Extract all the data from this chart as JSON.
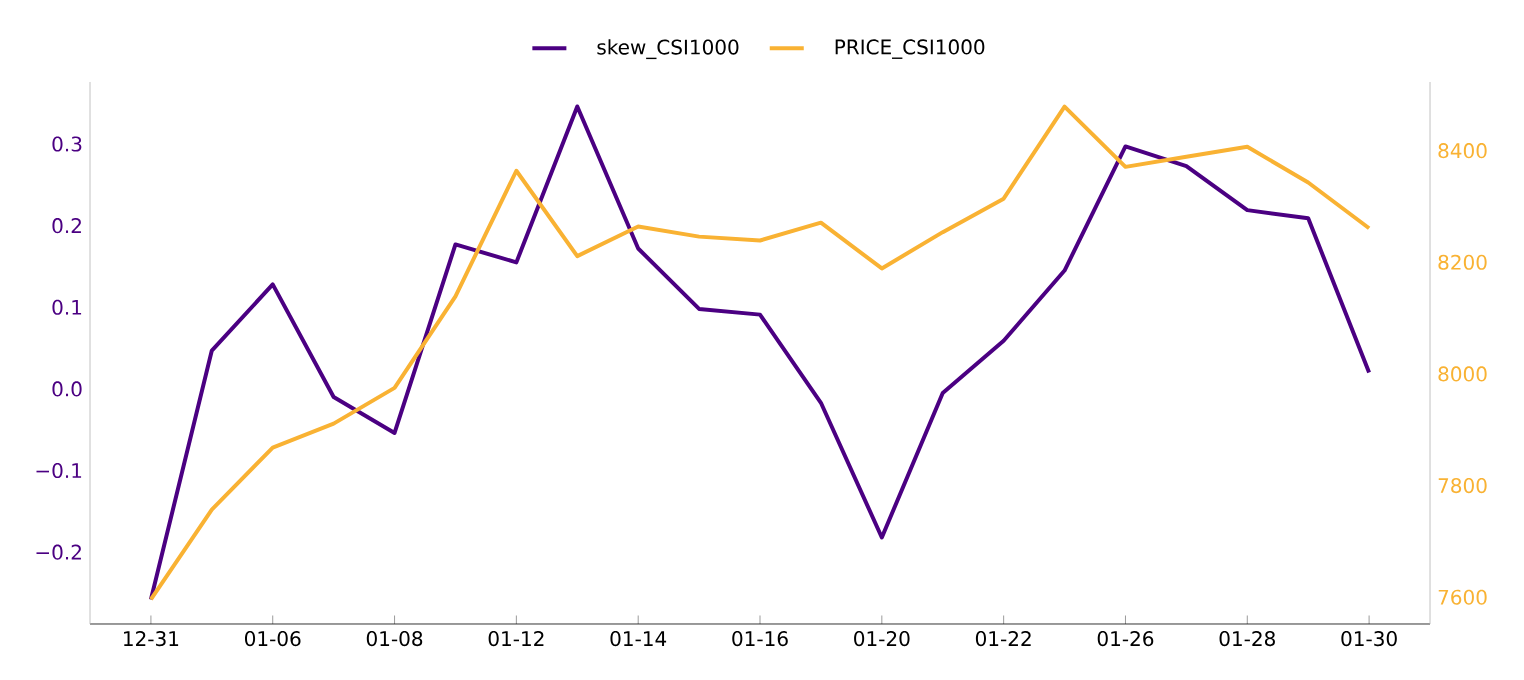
{
  "chart_data": {
    "type": "line",
    "categories": [
      "12-31",
      null,
      "01-06",
      null,
      "01-08",
      null,
      "01-12",
      null,
      "01-14",
      null,
      "01-16",
      null,
      "01-20",
      null,
      "01-22",
      null,
      "01-26",
      null,
      "01-28",
      null,
      "01-30"
    ],
    "series": [
      {
        "name": "skew_CSI1000",
        "color": "#4b0082",
        "values": [
          -0.258,
          0.047,
          0.128,
          -0.01,
          -0.054,
          0.177,
          0.155,
          0.346,
          0.172,
          0.098,
          0.091,
          -0.017,
          -0.182,
          -0.005,
          0.059,
          0.145,
          0.297,
          0.273,
          0.219,
          0.209,
          0.02
        ]
      },
      {
        "name": "PRICE_CSI1000",
        "color": "#f9b233",
        "axis": "y2",
        "values": [
          7596,
          7757,
          7868,
          7911,
          7975,
          8139,
          8364,
          8211,
          8264,
          8246,
          8239,
          8271,
          8189,
          8254,
          8314,
          8479,
          8371,
          8389,
          8407,
          8343,
          8261
        ]
      }
    ],
    "ylim": [
      -0.288,
      0.376
    ],
    "y2lim": [
      7552,
      8523
    ],
    "yticks": [
      {
        "value": -0.2,
        "label": "−0.2"
      },
      {
        "value": -0.1,
        "label": "−0.1"
      },
      {
        "value": 0,
        "label": "0.0"
      },
      0.1,
      0.2,
      0.3
    ],
    "y2ticks": [
      7600,
      7800,
      8000,
      8200,
      8400
    ],
    "legend": "top",
    "grid": false,
    "line_style": "solid",
    "marker": "none"
  }
}
